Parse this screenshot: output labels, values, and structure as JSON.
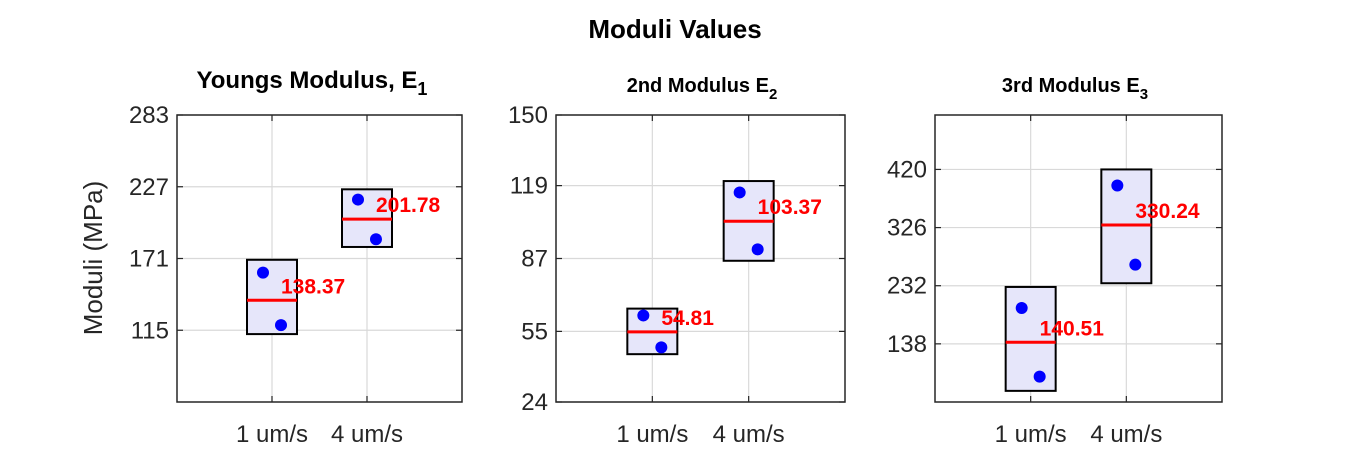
{
  "figure_title": "Moduli Values",
  "ylabel": "Moduli (MPa)",
  "colors": {
    "box_fill": "#e6e6fa",
    "box_edge": "#000000",
    "median": "#ff0000",
    "points": "#0000ff",
    "grid": "#d9d9d9"
  },
  "chart_data": [
    {
      "type": "box",
      "title": "Youngs Modulus, E",
      "title_sub": "1",
      "categories": [
        "1 um/s",
        "4 um/s"
      ],
      "yticks": [
        115,
        171,
        227,
        283
      ],
      "ylim": [
        59,
        283
      ],
      "grid": true,
      "boxes": [
        {
          "low": 112,
          "high": 170,
          "median": 138.37,
          "label": "138.37",
          "points": [
            160,
            119
          ]
        },
        {
          "low": 180,
          "high": 225,
          "median": 201.78,
          "label": "201.78",
          "points": [
            217,
            186
          ]
        }
      ]
    },
    {
      "type": "box",
      "title": "2nd Modulus E",
      "title_sub": "2",
      "categories": [
        "1 um/s",
        "4 um/s"
      ],
      "yticks": [
        24,
        55,
        87,
        119,
        150
      ],
      "ylim": [
        24,
        150
      ],
      "grid": true,
      "boxes": [
        {
          "low": 45,
          "high": 65,
          "median": 54.81,
          "label": "54.81",
          "points": [
            62,
            48
          ]
        },
        {
          "low": 86,
          "high": 121,
          "median": 103.37,
          "label": "103.37",
          "points": [
            116,
            91
          ]
        }
      ]
    },
    {
      "type": "box",
      "title": "3rd Modulus E",
      "title_sub": "3",
      "categories": [
        "1 um/s",
        "4 um/s"
      ],
      "yticks": [
        138,
        232,
        326,
        420
      ],
      "ylim": [
        44,
        508
      ],
      "grid": true,
      "boxes": [
        {
          "low": 62,
          "high": 230,
          "median": 140.51,
          "label": "140.51",
          "points": [
            196,
            85
          ]
        },
        {
          "low": 236,
          "high": 420,
          "median": 330.24,
          "label": "330.24",
          "points": [
            394,
            266
          ]
        }
      ]
    }
  ]
}
